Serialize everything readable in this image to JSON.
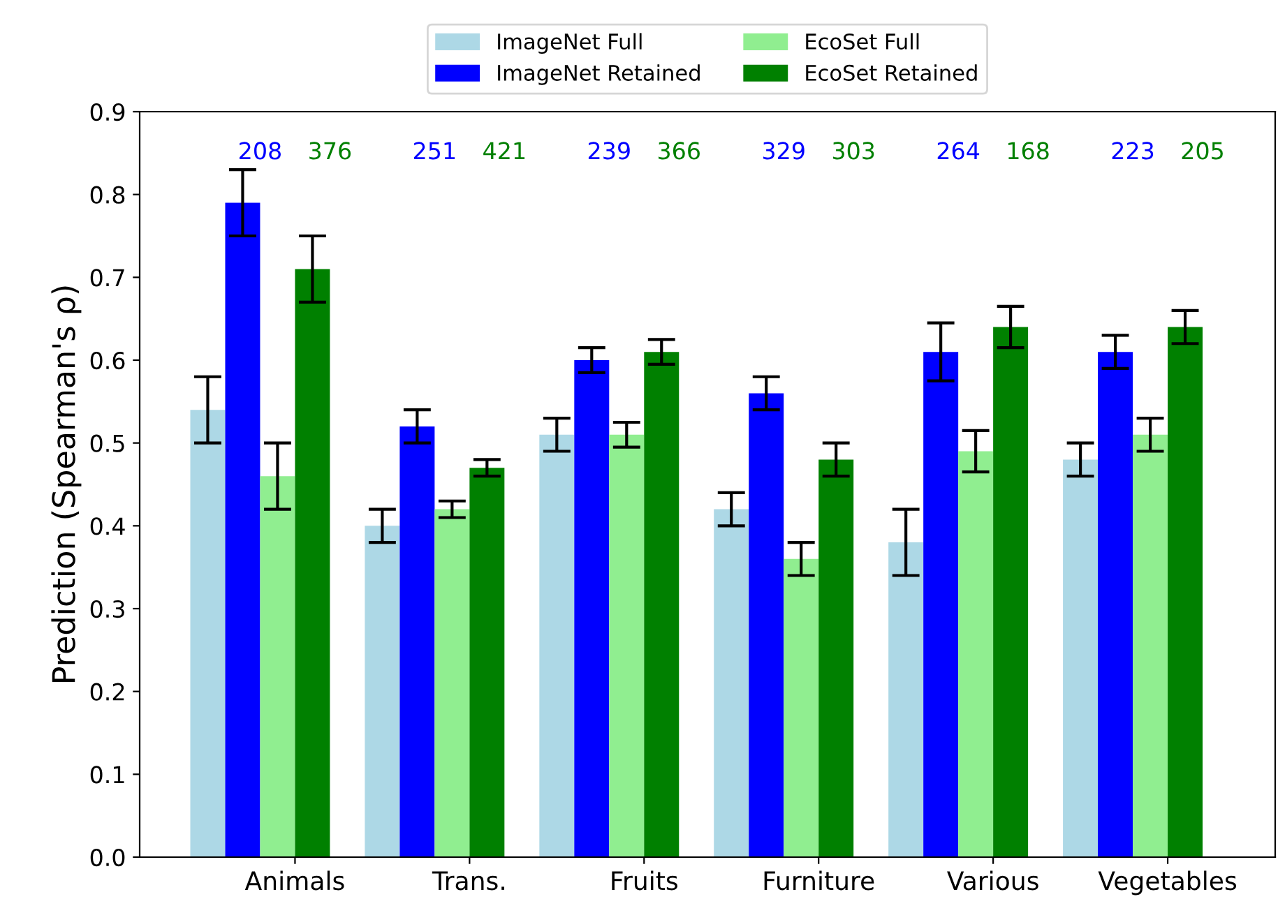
{
  "chart_data": {
    "type": "bar",
    "ylabel": "Prediction (Spearman's ρ)",
    "categories": [
      "Animals",
      "Trans.",
      "Fruits",
      "Furniture",
      "Various",
      "Vegetables"
    ],
    "series": [
      {
        "name": "ImageNet Full",
        "color": "#add8e6",
        "values": [
          0.54,
          0.4,
          0.51,
          0.42,
          0.38,
          0.48
        ],
        "errors": [
          0.04,
          0.02,
          0.02,
          0.02,
          0.04,
          0.02
        ]
      },
      {
        "name": "ImageNet Retained",
        "color": "#0000ff",
        "values": [
          0.79,
          0.52,
          0.6,
          0.56,
          0.61,
          0.61
        ],
        "errors": [
          0.04,
          0.02,
          0.015,
          0.02,
          0.035,
          0.02
        ]
      },
      {
        "name": "EcoSet Full",
        "color": "#90ee90",
        "values": [
          0.46,
          0.42,
          0.51,
          0.36,
          0.49,
          0.51
        ],
        "errors": [
          0.04,
          0.01,
          0.015,
          0.02,
          0.025,
          0.02
        ]
      },
      {
        "name": "EcoSet Retained",
        "color": "#008000",
        "values": [
          0.71,
          0.47,
          0.61,
          0.48,
          0.64,
          0.64
        ],
        "errors": [
          0.04,
          0.01,
          0.015,
          0.02,
          0.025,
          0.02
        ]
      }
    ],
    "annotations": [
      "208",
      "376",
      "251",
      "421",
      "239",
      "366",
      "329",
      "303",
      "264",
      "168",
      "223",
      "205"
    ],
    "ylim": [
      0,
      0.9
    ],
    "yticks": [
      {
        "value": 0,
        "label": "0.0"
      },
      0.1,
      0.2,
      0.3,
      0.4,
      0.5,
      0.6,
      0.7,
      0.8,
      0.9
    ],
    "legend": "top",
    "grid": false
  }
}
